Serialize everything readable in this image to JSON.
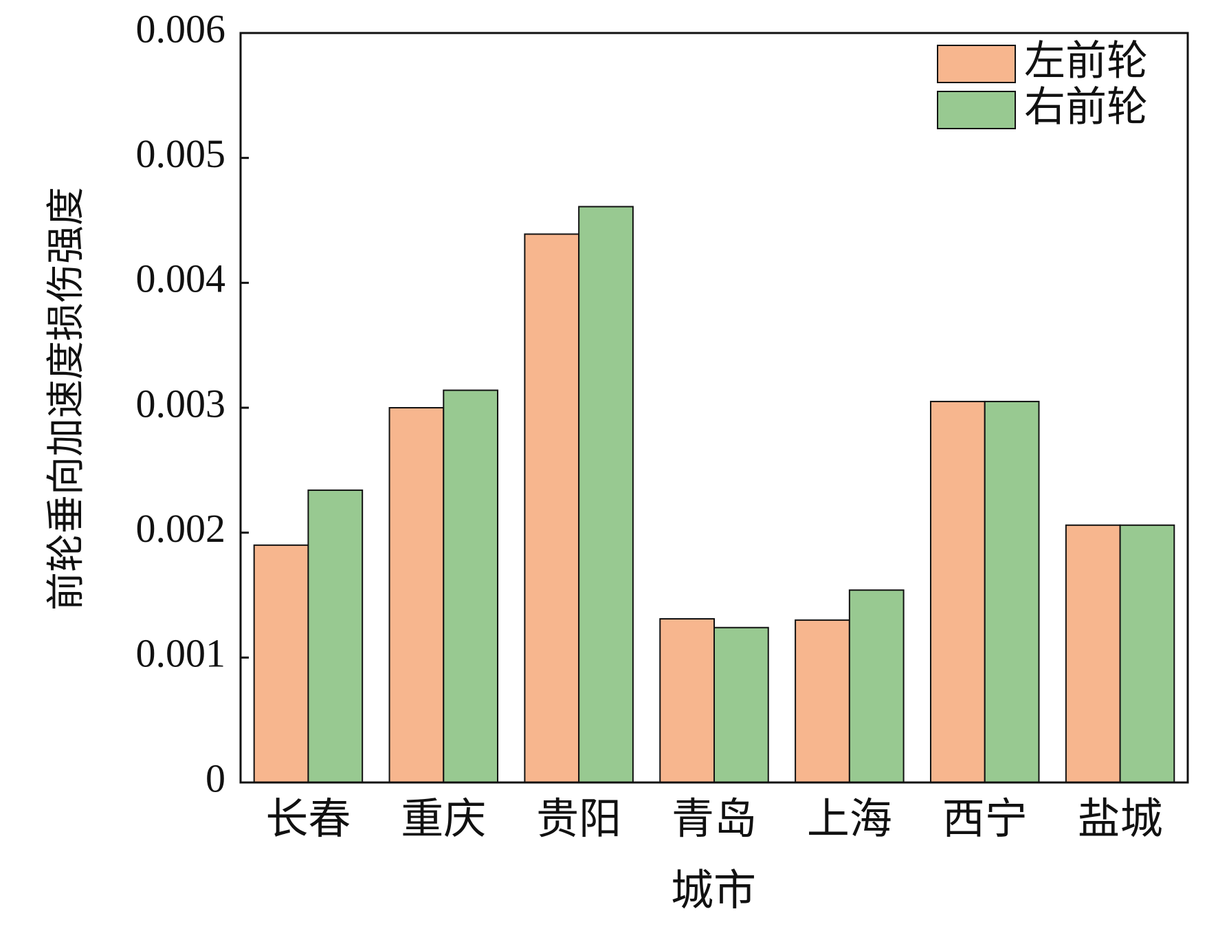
{
  "chart_data": {
    "type": "bar",
    "x_label": "城市",
    "y_label": "前轮垂向加速度损伤强度",
    "categories": [
      "长春",
      "重庆",
      "贵阳",
      "青岛",
      "上海",
      "西宁",
      "盐城"
    ],
    "series": [
      {
        "name": "左前轮",
        "color": "#f7b68e",
        "values": [
          0.0019,
          0.003,
          0.00439,
          0.00131,
          0.0013,
          0.00305,
          0.00206
        ]
      },
      {
        "name": "右前轮",
        "color": "#98c991",
        "values": [
          0.00234,
          0.00314,
          0.00461,
          0.00124,
          0.00154,
          0.00305,
          0.00206
        ]
      }
    ],
    "ylim": [
      0,
      0.006
    ],
    "yticks": [
      0,
      0.001,
      0.002,
      0.003,
      0.004,
      0.005,
      0.006
    ],
    "legend": "upper right"
  }
}
